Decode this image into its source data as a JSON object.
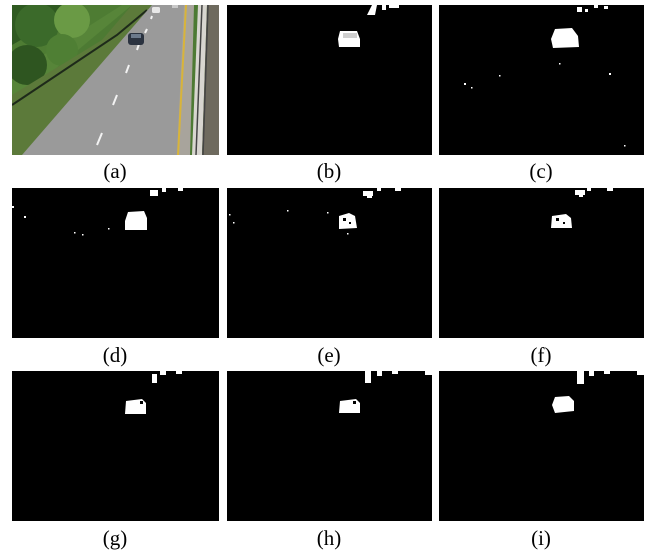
{
  "figure": {
    "panels": [
      {
        "id": "a",
        "caption": "(a)"
      },
      {
        "id": "b",
        "caption": "(b)"
      },
      {
        "id": "c",
        "caption": "(c)"
      },
      {
        "id": "d",
        "caption": "(d)"
      },
      {
        "id": "e",
        "caption": "(e)"
      },
      {
        "id": "f",
        "caption": "(f)"
      },
      {
        "id": "g",
        "caption": "(g)"
      },
      {
        "id": "h",
        "caption": "(h)"
      },
      {
        "id": "i",
        "caption": "(i)"
      }
    ],
    "colors": {
      "background": "#000000",
      "foreground": "#ffffff",
      "road": "#9a9a9a",
      "trees": "#3f6b2a",
      "lane_line": "#d8b43a",
      "car": "#2b3340"
    }
  }
}
